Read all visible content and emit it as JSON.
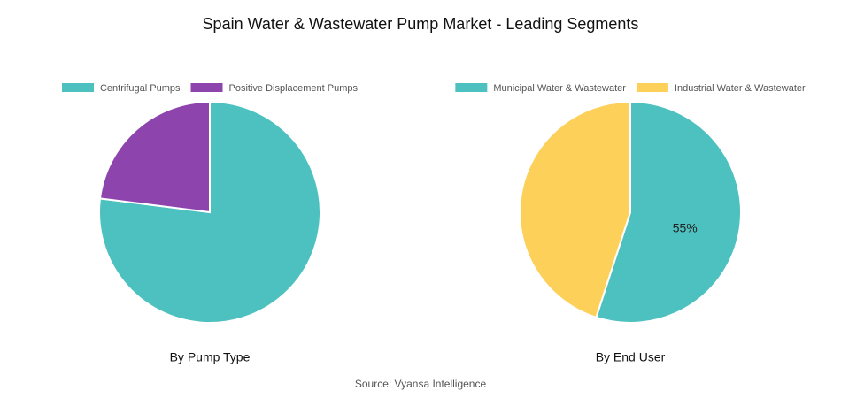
{
  "title": "Spain Water & Wastewater Pump Market - Leading Segments",
  "source": "Source: Vyansa Intelligence",
  "chart_data": [
    {
      "type": "pie",
      "title": "By Pump Type",
      "categories": [
        "Centrifugal Pumps",
        "Positive Displacement Pumps"
      ],
      "values": [
        77,
        23
      ],
      "colors": [
        "#4dc1bf",
        "#8e44ad"
      ],
      "legend": "top"
    },
    {
      "type": "pie",
      "title": "By End User",
      "categories": [
        "Municipal Water & Wastewater",
        "Industrial Water & Wastewater"
      ],
      "values": [
        55,
        45
      ],
      "value_labels": [
        "55%",
        null
      ],
      "colors": [
        "#4dc1bf",
        "#fdd05a"
      ],
      "legend": "top"
    }
  ]
}
